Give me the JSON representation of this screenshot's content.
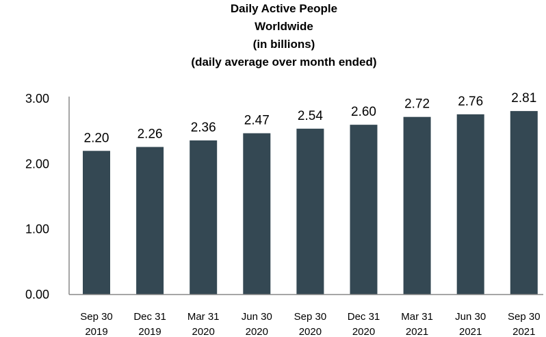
{
  "chart_data": {
    "type": "bar",
    "title_lines": [
      "Daily Active People",
      "Worldwide",
      "(in billions)",
      "(daily average over month ended)"
    ],
    "categories": [
      [
        "Sep 30",
        "2019"
      ],
      [
        "Dec 31",
        "2019"
      ],
      [
        "Mar 31",
        "2020"
      ],
      [
        "Jun 30",
        "2020"
      ],
      [
        "Sep 30",
        "2020"
      ],
      [
        "Dec 31",
        "2020"
      ],
      [
        "Mar 31",
        "2021"
      ],
      [
        "Jun 30",
        "2021"
      ],
      [
        "Sep 30",
        "2021"
      ]
    ],
    "values": [
      2.2,
      2.26,
      2.36,
      2.47,
      2.54,
      2.6,
      2.72,
      2.76,
      2.81
    ],
    "value_labels": [
      "2.20",
      "2.26",
      "2.36",
      "2.47",
      "2.54",
      "2.60",
      "2.72",
      "2.76",
      "2.81"
    ],
    "yticks": [
      0,
      1,
      2,
      3
    ],
    "ytick_labels": [
      "0.00",
      "1.00",
      "2.00",
      "3.00"
    ],
    "ylim": [
      0,
      3
    ],
    "xlabel": "",
    "ylabel": "",
    "grid": false,
    "bar_color": "#344853"
  }
}
